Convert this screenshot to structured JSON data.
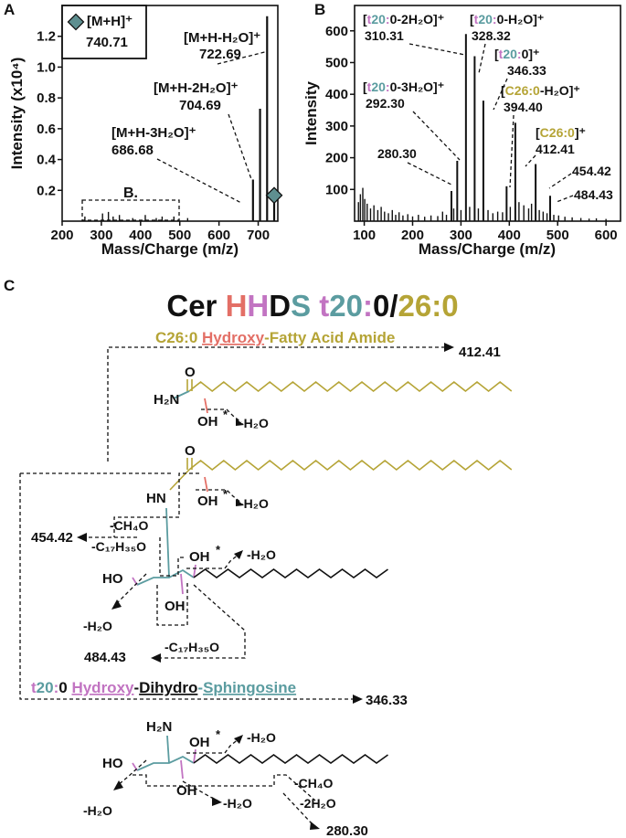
{
  "colors": {
    "teal": "#5b9ca0",
    "pink": "#c274c2",
    "salmon": "#e36f66",
    "olive": "#b5a436",
    "black": "#111111",
    "marker": "#5e8f90"
  },
  "panels": {
    "a": "A",
    "b": "B",
    "c": "C"
  },
  "chart_data": [
    {
      "type": "bar",
      "panel": "A",
      "xlabel": "Mass/Charge (m/z)",
      "ylabel": "Intensity (x10⁴)",
      "xlim": [
        200,
        750
      ],
      "ylim": [
        0,
        1.4
      ],
      "xticks": [
        "200",
        "300",
        "400",
        "500",
        "600",
        "700"
      ],
      "yticks": [
        "0.2",
        "0.4",
        "0.6",
        "0.8",
        "1.0",
        "1.2"
      ],
      "peaks": [
        {
          "x": 686.68,
          "y": 0.27
        },
        {
          "x": 704.69,
          "y": 0.73
        },
        {
          "x": 722.69,
          "y": 1.33
        },
        {
          "x": 740.71,
          "y": 0.12
        }
      ],
      "minor_peaks": [
        {
          "x": 258,
          "y": 0.03
        },
        {
          "x": 303,
          "y": 0.05
        },
        {
          "x": 318,
          "y": 0.06
        },
        {
          "x": 330,
          "y": 0.03
        },
        {
          "x": 346,
          "y": 0.04
        },
        {
          "x": 380,
          "y": 0.02
        },
        {
          "x": 412,
          "y": 0.04
        },
        {
          "x": 440,
          "y": 0.02
        },
        {
          "x": 455,
          "y": 0.03
        },
        {
          "x": 485,
          "y": 0.03
        },
        {
          "x": 520,
          "y": 0.02
        }
      ],
      "annotations": [
        {
          "x": 722.69,
          "line1": "[M+H-H₂O]⁺",
          "line2": "722.69"
        },
        {
          "x": 704.69,
          "line1": "[M+H-2H₂O]⁺",
          "line2": "704.69"
        },
        {
          "x": 686.68,
          "line1": "[M+H-3H₂O]⁺",
          "line2": "686.68"
        }
      ],
      "legend": {
        "label": "[M+H]⁺",
        "value": "740.71"
      },
      "inset_label": "B."
    },
    {
      "type": "bar",
      "panel": "B",
      "xlabel": "Mass/Charge (m/z)",
      "ylabel": "Intensity",
      "xlim": [
        80,
        630
      ],
      "ylim": [
        0,
        680
      ],
      "xticks": [
        "100",
        "200",
        "300",
        "400",
        "500",
        "600"
      ],
      "yticks": [
        "100",
        "200",
        "300",
        "400",
        "500",
        "600"
      ],
      "peaks": [
        {
          "x": 280.3,
          "y": 95
        },
        {
          "x": 292.3,
          "y": 190
        },
        {
          "x": 310.31,
          "y": 590
        },
        {
          "x": 328.32,
          "y": 520
        },
        {
          "x": 346.33,
          "y": 380
        },
        {
          "x": 394.4,
          "y": 110
        },
        {
          "x": 412.41,
          "y": 310
        },
        {
          "x": 454.42,
          "y": 180
        },
        {
          "x": 484.43,
          "y": 80
        }
      ],
      "minor_peaks": [
        {
          "x": 88,
          "y": 60
        },
        {
          "x": 92,
          "y": 85
        },
        {
          "x": 97,
          "y": 105
        },
        {
          "x": 101,
          "y": 70
        },
        {
          "x": 106,
          "y": 55
        },
        {
          "x": 113,
          "y": 40
        },
        {
          "x": 120,
          "y": 50
        },
        {
          "x": 128,
          "y": 35
        },
        {
          "x": 135,
          "y": 45
        },
        {
          "x": 142,
          "y": 30
        },
        {
          "x": 150,
          "y": 25
        },
        {
          "x": 158,
          "y": 35
        },
        {
          "x": 165,
          "y": 20
        },
        {
          "x": 172,
          "y": 28
        },
        {
          "x": 180,
          "y": 18
        },
        {
          "x": 190,
          "y": 22
        },
        {
          "x": 200,
          "y": 15
        },
        {
          "x": 212,
          "y": 20
        },
        {
          "x": 225,
          "y": 14
        },
        {
          "x": 238,
          "y": 18
        },
        {
          "x": 252,
          "y": 16
        },
        {
          "x": 262,
          "y": 30
        },
        {
          "x": 270,
          "y": 20
        },
        {
          "x": 285,
          "y": 40
        },
        {
          "x": 300,
          "y": 35
        },
        {
          "x": 318,
          "y": 45
        },
        {
          "x": 336,
          "y": 40
        },
        {
          "x": 356,
          "y": 35
        },
        {
          "x": 366,
          "y": 25
        },
        {
          "x": 376,
          "y": 30
        },
        {
          "x": 386,
          "y": 28
        },
        {
          "x": 402,
          "y": 45
        },
        {
          "x": 420,
          "y": 60
        },
        {
          "x": 430,
          "y": 50
        },
        {
          "x": 440,
          "y": 40
        },
        {
          "x": 446,
          "y": 55
        },
        {
          "x": 462,
          "y": 35
        },
        {
          "x": 470,
          "y": 30
        },
        {
          "x": 478,
          "y": 25
        },
        {
          "x": 492,
          "y": 20
        },
        {
          "x": 502,
          "y": 18
        },
        {
          "x": 515,
          "y": 14
        },
        {
          "x": 530,
          "y": 12
        },
        {
          "x": 548,
          "y": 10
        },
        {
          "x": 565,
          "y": 8
        },
        {
          "x": 580,
          "y": 9
        },
        {
          "x": 600,
          "y": 7
        }
      ],
      "annotations": [
        {
          "x": 310.31,
          "prefix": "[",
          "b1": "t",
          "b2": "20",
          "b3": ":",
          "rest": "0-2H₂O]⁺",
          "value": "310.31",
          "color": "pink"
        },
        {
          "x": 328.32,
          "prefix": "[",
          "b1": "t",
          "b2": "20",
          "b3": ":",
          "rest": "0-H₂O]⁺",
          "value": "328.32",
          "color": "pink"
        },
        {
          "x": 346.33,
          "prefix": "[",
          "b1": "t",
          "b2": "20",
          "b3": ":",
          "rest": "0]⁺",
          "value": "346.33",
          "color": "pink"
        },
        {
          "x": 292.3,
          "prefix": "[",
          "b1": "t",
          "b2": "20",
          "b3": ":",
          "rest": "0-3H₂O]⁺",
          "value": "292.30",
          "color": "pink"
        },
        {
          "x": 394.4,
          "prefix": "[",
          "b1": "C26:0",
          "rest": "-H₂O]⁺",
          "value": "394.40",
          "color": "olive"
        },
        {
          "x": 412.41,
          "prefix": "[",
          "b1": "C26:0",
          "rest": "]⁺",
          "value": "412.41",
          "color": "olive"
        },
        {
          "x": 280.3,
          "value": "280.30"
        },
        {
          "x": 454.42,
          "value": "454.42"
        },
        {
          "x": 484.43,
          "value": "484.43"
        }
      ]
    }
  ],
  "title": {
    "cer": "Cer",
    "h1": "H",
    "h2": "H",
    "d": "D",
    "s": "S",
    "t": "t",
    "twenty": "20",
    "colon": ":",
    "zero": "0",
    "slash": "/",
    "fatty": "26:0"
  },
  "structure": {
    "fatty_label_pre": "C26:0 ",
    "fatty_label_hydroxy": "Hydroxy",
    "fatty_label_post": "-Fatty Acid Amide",
    "fatty_mz": "412.41",
    "sph_label_t": "t",
    "sph_label_20": "20",
    "sph_label_colon": ":",
    "sph_label_0": "0 ",
    "sph_label_hydroxy": "Hydroxy",
    "sph_label_dash1": "-",
    "sph_label_dihydro": "Dihydro",
    "sph_label_dash2": "-",
    "sph_label_sphingosine": "Sphingosine",
    "sph_mz": "346.33",
    "h2n": "H₂N",
    "o": "O",
    "oh": "OH",
    "star": "*",
    "minus_h2o": "-H₂O",
    "hn": "HN",
    "ho": "HO",
    "minus_ch4o": "-CH₄O",
    "minus_c17": "-C₁₇H₃₅O",
    "mz_454": "454.42",
    "mz_484": "484.43",
    "minus_2h2o": "-2H₂O",
    "mz_280": "280.30"
  }
}
